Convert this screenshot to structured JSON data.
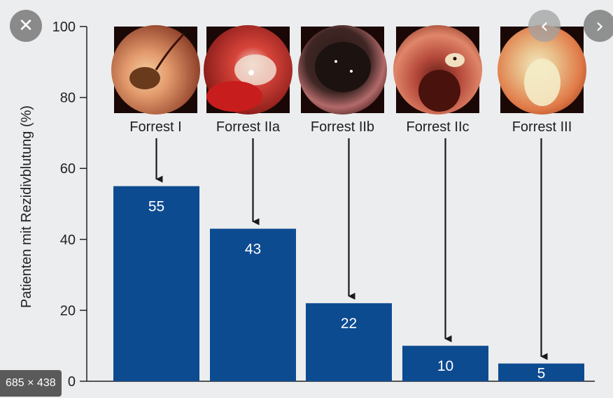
{
  "overlay": {
    "close_icon": "close-icon",
    "prev_icon": "chevron-left-icon",
    "next_icon": "chevron-right-icon",
    "size_label": "685 × 438"
  },
  "colors": {
    "bar": "#0d4b91",
    "axis": "#222222",
    "arrow": "#1a1a1a",
    "background": "#ecedee"
  },
  "chart_data": {
    "type": "bar",
    "categories": [
      "Forrest I",
      "Forrest IIa",
      "Forrest IIb",
      "Forrest IIc",
      "Forrest III"
    ],
    "values": [
      55,
      43,
      22,
      10,
      5
    ],
    "data_labels": [
      "55",
      "43",
      "22",
      "10",
      "5"
    ],
    "ylabel": "Patienten mit Rezidivblutung (%)",
    "ylim": [
      0,
      100
    ],
    "yticks": [
      0,
      20,
      40,
      60,
      80,
      100
    ],
    "ytick_labels": [
      "0",
      "20",
      "40",
      "60",
      "80",
      "100"
    ],
    "grid": false,
    "category_images": [
      "endoscopy-photo-active-bleeding",
      "endoscopy-photo-visible-vessel",
      "endoscopy-photo-adherent-clot",
      "endoscopy-photo-flat-spot",
      "endoscopy-photo-clean-base"
    ]
  }
}
